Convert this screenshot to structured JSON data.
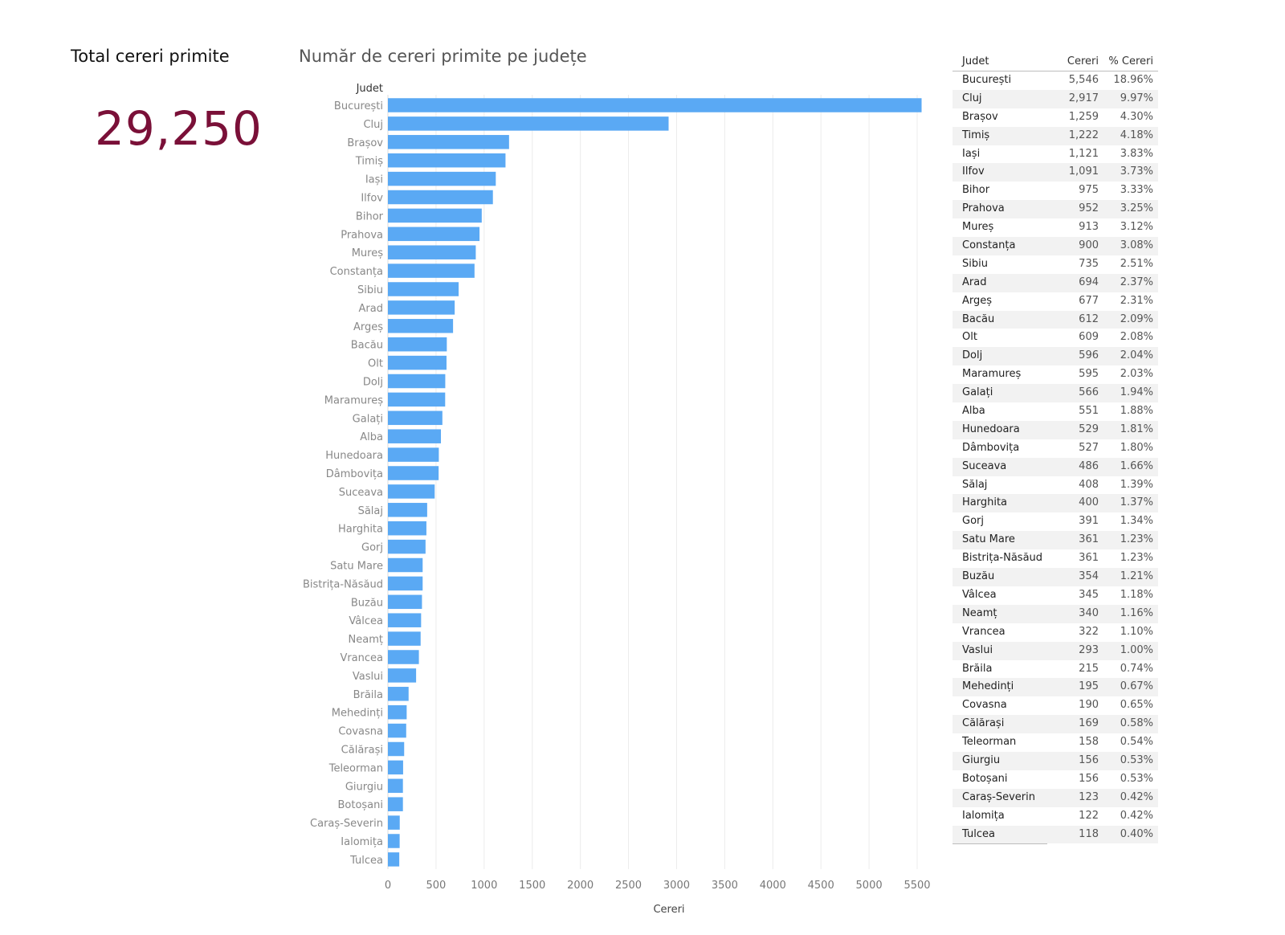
{
  "kpi": {
    "title": "Total cereri primite",
    "value": "29,250"
  },
  "chart_title": "Număr de cereri primite pe județe",
  "chart_data": {
    "type": "bar",
    "orientation": "horizontal",
    "title": "Număr de cereri primite pe județe",
    "xlabel": "Cereri",
    "ylabel": "Judet",
    "xlim": [
      0,
      5500
    ],
    "xticks": [
      "0",
      "500",
      "1000",
      "1500",
      "2000",
      "2500",
      "3000",
      "3500",
      "4000",
      "4500",
      "5000",
      "5500"
    ],
    "grid": "vertical",
    "bar_color": "#5aa9f4",
    "categories": [
      "București",
      "Cluj",
      "Brașov",
      "Timiș",
      "Iași",
      "Ilfov",
      "Bihor",
      "Prahova",
      "Mureș",
      "Constanța",
      "Sibiu",
      "Arad",
      "Argeș",
      "Bacău",
      "Olt",
      "Dolj",
      "Maramureș",
      "Galați",
      "Alba",
      "Hunedoara",
      "Dâmbovița",
      "Suceava",
      "Sălaj",
      "Harghita",
      "Gorj",
      "Satu Mare",
      "Bistrița-Năsăud",
      "Buzău",
      "Vâlcea",
      "Neamț",
      "Vrancea",
      "Vaslui",
      "Brăila",
      "Mehedinți",
      "Covasna",
      "Călărași",
      "Teleorman",
      "Giurgiu",
      "Botoșani",
      "Caraș-Severin",
      "Ialomița",
      "Tulcea"
    ],
    "values": [
      5546,
      2917,
      1259,
      1222,
      1121,
      1091,
      975,
      952,
      913,
      900,
      735,
      694,
      677,
      612,
      609,
      596,
      595,
      566,
      551,
      529,
      527,
      486,
      408,
      400,
      391,
      361,
      361,
      354,
      345,
      340,
      322,
      293,
      215,
      195,
      190,
      169,
      158,
      156,
      156,
      123,
      122,
      118
    ]
  },
  "table": {
    "headers": [
      "Judet",
      "Cereri",
      "% Cereri"
    ],
    "rows": [
      [
        "București",
        "5,546",
        "18.96%"
      ],
      [
        "Cluj",
        "2,917",
        "9.97%"
      ],
      [
        "Brașov",
        "1,259",
        "4.30%"
      ],
      [
        "Timiș",
        "1,222",
        "4.18%"
      ],
      [
        "Iași",
        "1,121",
        "3.83%"
      ],
      [
        "Ilfov",
        "1,091",
        "3.73%"
      ],
      [
        "Bihor",
        "975",
        "3.33%"
      ],
      [
        "Prahova",
        "952",
        "3.25%"
      ],
      [
        "Mureș",
        "913",
        "3.12%"
      ],
      [
        "Constanța",
        "900",
        "3.08%"
      ],
      [
        "Sibiu",
        "735",
        "2.51%"
      ],
      [
        "Arad",
        "694",
        "2.37%"
      ],
      [
        "Argeș",
        "677",
        "2.31%"
      ],
      [
        "Bacău",
        "612",
        "2.09%"
      ],
      [
        "Olt",
        "609",
        "2.08%"
      ],
      [
        "Dolj",
        "596",
        "2.04%"
      ],
      [
        "Maramureș",
        "595",
        "2.03%"
      ],
      [
        "Galați",
        "566",
        "1.94%"
      ],
      [
        "Alba",
        "551",
        "1.88%"
      ],
      [
        "Hunedoara",
        "529",
        "1.81%"
      ],
      [
        "Dâmbovița",
        "527",
        "1.80%"
      ],
      [
        "Suceava",
        "486",
        "1.66%"
      ],
      [
        "Sălaj",
        "408",
        "1.39%"
      ],
      [
        "Harghita",
        "400",
        "1.37%"
      ],
      [
        "Gorj",
        "391",
        "1.34%"
      ],
      [
        "Satu Mare",
        "361",
        "1.23%"
      ],
      [
        "Bistrița-Năsăud",
        "361",
        "1.23%"
      ],
      [
        "Buzău",
        "354",
        "1.21%"
      ],
      [
        "Vâlcea",
        "345",
        "1.18%"
      ],
      [
        "Neamț",
        "340",
        "1.16%"
      ],
      [
        "Vrancea",
        "322",
        "1.10%"
      ],
      [
        "Vaslui",
        "293",
        "1.00%"
      ],
      [
        "Brăila",
        "215",
        "0.74%"
      ],
      [
        "Mehedinți",
        "195",
        "0.67%"
      ],
      [
        "Covasna",
        "190",
        "0.65%"
      ],
      [
        "Călărași",
        "169",
        "0.58%"
      ],
      [
        "Teleorman",
        "158",
        "0.54%"
      ],
      [
        "Giurgiu",
        "156",
        "0.53%"
      ],
      [
        "Botoșani",
        "156",
        "0.53%"
      ],
      [
        "Caraș-Severin",
        "123",
        "0.42%"
      ],
      [
        "Ialomița",
        "122",
        "0.42%"
      ],
      [
        "Tulcea",
        "118",
        "0.40%"
      ]
    ]
  }
}
